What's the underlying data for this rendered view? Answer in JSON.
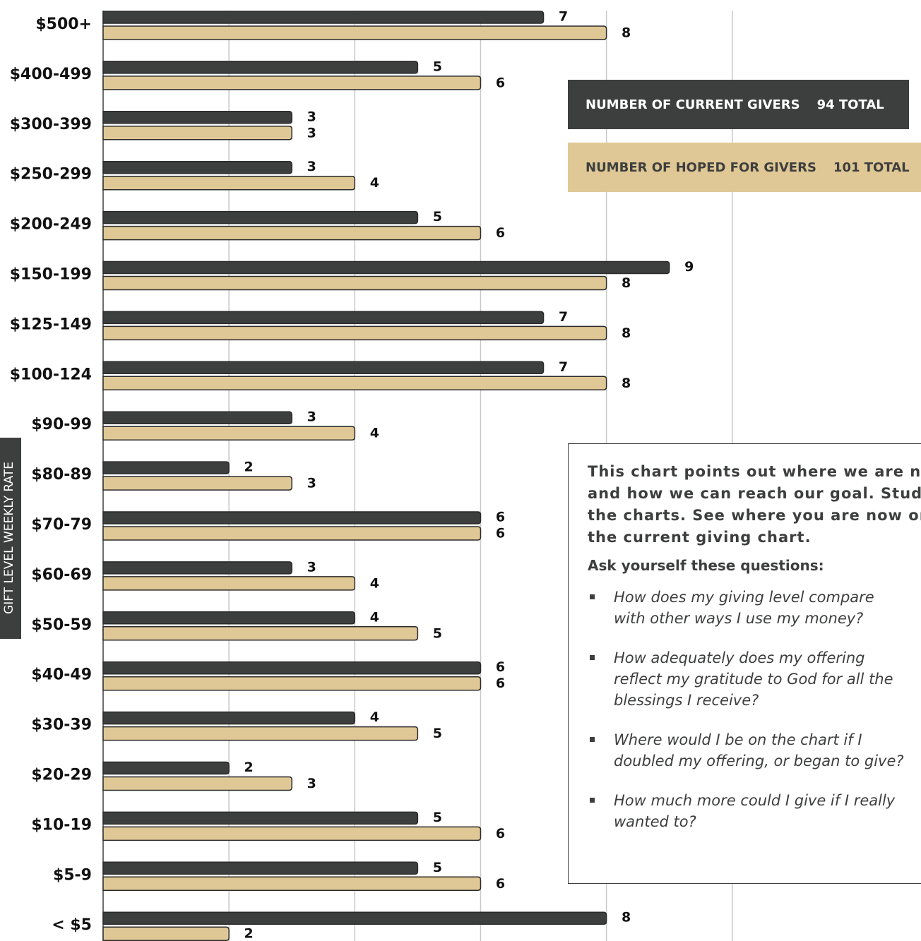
{
  "chart_data": {
    "type": "bar",
    "orientation": "horizontal",
    "y_label": "GIFT LEVEL WEEKLY RATE",
    "categories": [
      "$500+",
      "$400-499",
      "$300-399",
      "$250-299",
      "$200-249",
      "$150-199",
      "$125-149",
      "$100-124",
      "$90-99",
      "$80-89",
      "$70-79",
      "$60-69",
      "$50-59",
      "$40-49",
      "$30-39",
      "$20-29",
      "$10-19",
      "$5-9",
      "< $5"
    ],
    "series": [
      {
        "name": "NUMBER OF CURRENT GIVERS",
        "total": "94 TOTAL",
        "color": "#3d3f3e",
        "text_color": "#ffffff",
        "values": [
          7,
          5,
          3,
          3,
          5,
          9,
          7,
          7,
          3,
          2,
          6,
          3,
          4,
          6,
          4,
          2,
          5,
          5,
          8
        ]
      },
      {
        "name": "NUMBER OF HOPED FOR GIVERS",
        "total": "101 TOTAL",
        "color": "#e0c896",
        "text_color": "#3d3f3e",
        "values": [
          8,
          6,
          3,
          4,
          6,
          8,
          8,
          8,
          4,
          3,
          6,
          4,
          5,
          6,
          5,
          3,
          6,
          6,
          2
        ]
      }
    ],
    "xlim": [
      0,
      13
    ],
    "xticks": [
      2,
      4,
      6,
      8,
      10
    ],
    "grid": true
  },
  "note": {
    "lead": "This chart points out where we are now and how we can reach our goal. Study the charts. See where you are now on the current giving chart.",
    "ask": "Ask yourself these questions:",
    "questions": [
      "How does my giving level compare with other ways I use my money?",
      "How adequately does my offering reflect my gratitude to God for all the blessings I receive?",
      "Where would I be on the chart if I doubled my offering, or began to give?",
      "How much more could I give if I really wanted to?"
    ]
  }
}
